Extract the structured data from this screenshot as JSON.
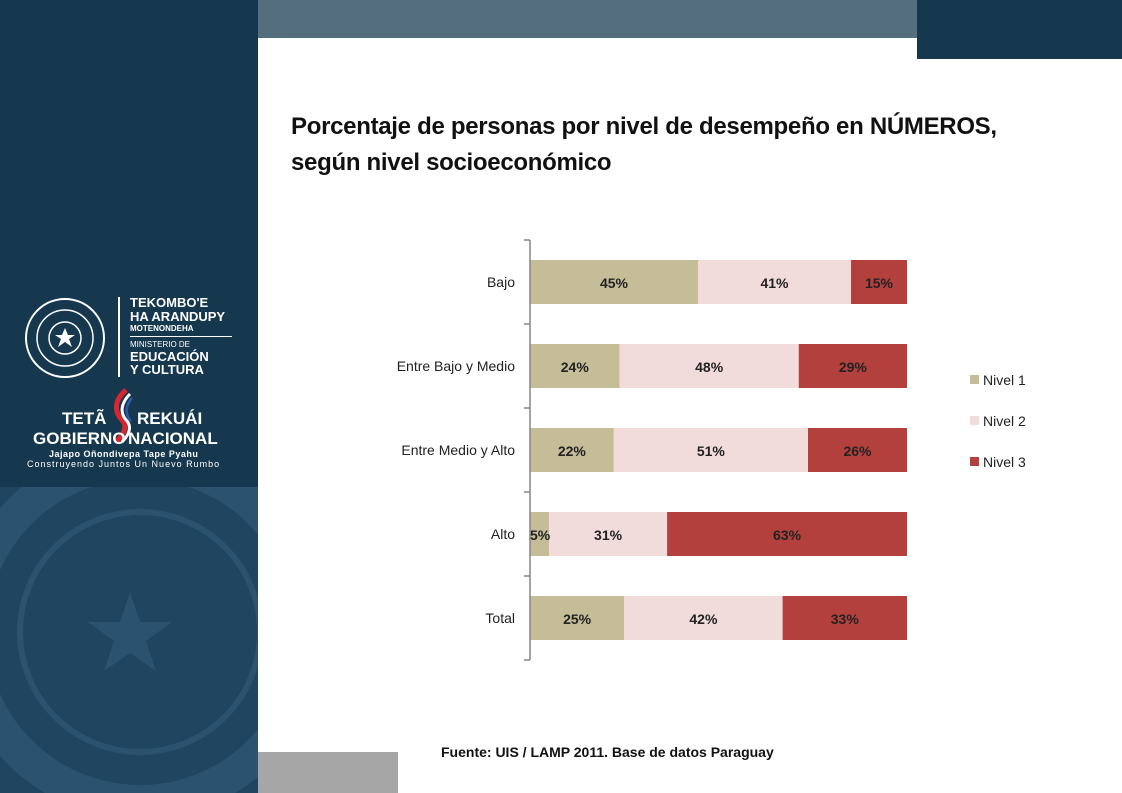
{
  "logo": {
    "seal_text": "REPUBLICA DEL PARAGUAY",
    "ministry_line1": "TEKOMBO'E",
    "ministry_line2": "HA ARANDUPY",
    "ministry_line3": "MOTENONDEHA",
    "ministry_line4": "MINISTERIO DE",
    "ministry_line5": "EDUCACIÓN",
    "ministry_line6": "Y CULTURA",
    "gov_left1": "TETÃ",
    "gov_right1": "REKUÁI",
    "gov_left2": "GOBIERNO",
    "gov_right2": "NACIONAL",
    "slogan1": "Jajapo Oñondivepa Tape Pyahu",
    "slogan2": "Construyendo Juntos Un Nuevo Rumbo"
  },
  "title_line1": "Porcentaje de personas por nivel de desempeño en NÚMEROS,",
  "title_line2": "según nivel socioeconómico",
  "source": "Fuente:  UIS / LAMP 2011. Base de datos Paraguay",
  "colors": {
    "nivel1": "#c4bd97",
    "nivel2": "#f2dcdb",
    "nivel3": "#b3403d",
    "sidebar": "#15384e",
    "topbar": "#546e7d"
  },
  "chart_data": {
    "type": "bar",
    "orientation": "horizontal",
    "stacked": true,
    "categories": [
      "Bajo",
      "Entre Bajo y Medio",
      "Entre Medio y Alto",
      "Alto",
      "Total"
    ],
    "series": [
      {
        "name": "Nivel 1",
        "values": [
          45,
          24,
          22,
          5,
          25
        ],
        "labels": [
          "45%",
          "24%",
          "22%",
          "5%",
          "25%"
        ],
        "color": "#c4bd97"
      },
      {
        "name": "Nivel 2",
        "values": [
          41,
          48,
          51,
          31,
          42
        ],
        "labels": [
          "41%",
          "48%",
          "51%",
          "31%",
          "42%"
        ],
        "color": "#f2dcdb"
      },
      {
        "name": "Nivel 3",
        "values": [
          15,
          29,
          26,
          63,
          33
        ],
        "labels": [
          "15%",
          "29%",
          "26%",
          "63%",
          "33%"
        ],
        "color": "#b3403d"
      }
    ],
    "legend": "right",
    "grid": false
  }
}
